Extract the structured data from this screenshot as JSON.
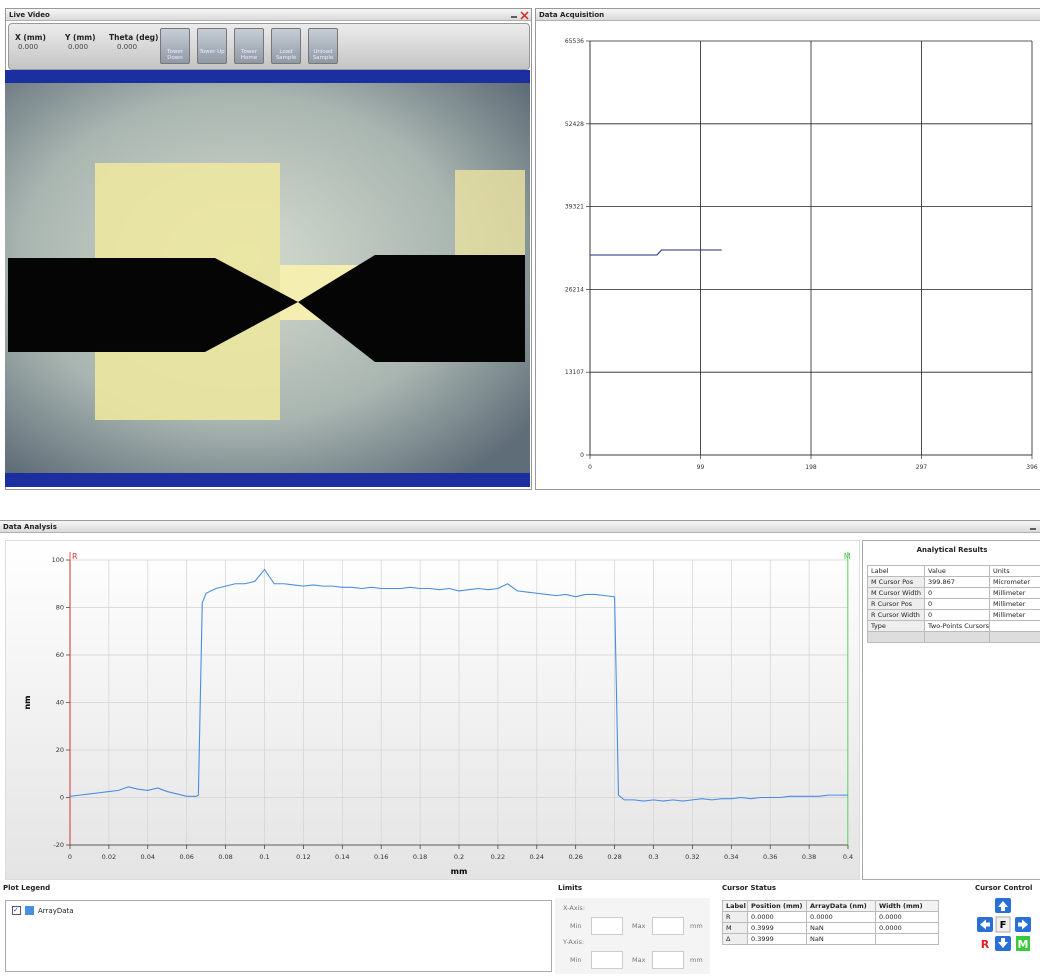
{
  "live_video": {
    "title": "Live Video",
    "readouts": [
      {
        "label": "X (mm)",
        "value": "0.000"
      },
      {
        "label": "Y (mm)",
        "value": "0.000"
      },
      {
        "label": "Theta (deg)",
        "value": "0.000"
      }
    ],
    "buttons": [
      "Tower Down",
      "Tower Up",
      "Tower Home",
      "Load Sample",
      "Unload Sample"
    ]
  },
  "chart_data": [
    {
      "type": "line",
      "title": "Data Acquisition",
      "x": [
        0,
        60,
        64,
        118
      ],
      "series": [
        {
          "color": "#1f2a8a",
          "values": [
            31660,
            31660,
            32450,
            32450
          ]
        }
      ],
      "xlim": [
        0,
        396
      ],
      "ylim": [
        0,
        65536
      ],
      "xticks": [
        0,
        99,
        198,
        297,
        396
      ],
      "yticks": [
        0,
        13107,
        26214,
        39321,
        52428,
        65536
      ],
      "grid": true
    },
    {
      "type": "line",
      "title": "Data Analysis",
      "xlabel": "mm",
      "ylabel": "nm",
      "x": [
        0,
        0.005,
        0.01,
        0.015,
        0.02,
        0.025,
        0.03,
        0.035,
        0.04,
        0.045,
        0.05,
        0.055,
        0.06,
        0.065,
        0.066,
        0.068,
        0.07,
        0.075,
        0.08,
        0.085,
        0.09,
        0.095,
        0.1,
        0.105,
        0.11,
        0.115,
        0.12,
        0.125,
        0.13,
        0.135,
        0.14,
        0.145,
        0.15,
        0.155,
        0.16,
        0.165,
        0.17,
        0.175,
        0.18,
        0.185,
        0.19,
        0.195,
        0.2,
        0.205,
        0.21,
        0.215,
        0.22,
        0.225,
        0.23,
        0.235,
        0.24,
        0.245,
        0.25,
        0.255,
        0.26,
        0.265,
        0.27,
        0.275,
        0.28,
        0.282,
        0.285,
        0.29,
        0.295,
        0.3,
        0.305,
        0.31,
        0.315,
        0.32,
        0.325,
        0.33,
        0.335,
        0.34,
        0.345,
        0.35,
        0.355,
        0.36,
        0.365,
        0.37,
        0.375,
        0.38,
        0.385,
        0.39,
        0.395,
        0.4
      ],
      "series": [
        {
          "name": "ArrayData",
          "color": "#4a8ee0",
          "values": [
            0.5,
            1,
            1.5,
            2,
            2.5,
            3,
            4.5,
            3.5,
            3,
            4,
            2.5,
            1.5,
            0.5,
            0.5,
            1,
            82,
            86,
            88,
            89,
            90,
            90,
            91,
            96,
            90,
            90,
            89.5,
            89,
            89.5,
            89,
            89,
            88.5,
            88.5,
            88,
            88.5,
            88,
            88,
            88,
            88.5,
            88,
            88,
            87.5,
            88,
            87,
            87.5,
            88,
            87.5,
            88,
            90,
            87,
            86.5,
            86,
            85.5,
            85,
            85.5,
            84.5,
            85.5,
            85.5,
            85,
            84.5,
            1,
            -1,
            -1,
            -1.5,
            -1,
            -1.5,
            -1,
            -1.5,
            -1,
            -0.5,
            -1,
            -0.5,
            -0.5,
            0,
            -0.5,
            0,
            0,
            0,
            0.5,
            0.5,
            0.5,
            0.5,
            1,
            1,
            1
          ]
        }
      ],
      "cursors": [
        {
          "label": "R",
          "color": "#e03030",
          "x": 0
        },
        {
          "label": "M",
          "color": "#44cc44",
          "x": 0.3999
        }
      ],
      "xlim": [
        0,
        0.4
      ],
      "ylim": [
        -20,
        100
      ],
      "xticks": [
        0,
        0.02,
        0.04,
        0.06,
        0.08,
        0.1,
        0.12,
        0.14,
        0.16,
        0.18,
        0.2,
        0.22,
        0.24,
        0.26,
        0.28,
        0.3,
        0.32,
        0.34,
        0.36,
        0.38,
        0.4
      ],
      "yticks": [
        -20,
        0,
        20,
        40,
        60,
        80,
        100
      ],
      "grid": true
    }
  ],
  "analytical_results": {
    "title": "Analytical Results",
    "header": [
      "Label",
      "Value",
      "Units"
    ],
    "rows": [
      [
        "M Cursor Pos",
        "399.867",
        "Micrometer"
      ],
      [
        "M Cursor Width",
        "0",
        "Millimeter"
      ],
      [
        "R Cursor Pos",
        "0",
        "Millimeter"
      ],
      [
        "R Cursor Width",
        "0",
        "Millimeter"
      ],
      [
        "Type",
        "Two-Points Cursors"
      ]
    ]
  },
  "plot_legend": {
    "title": "Plot Legend"
  },
  "limits": {
    "title": "Limits",
    "x_axis": "X-Axis:",
    "y_axis": "Y-Axis:",
    "min": "Min",
    "max": "Max",
    "unit": "mm"
  },
  "cursor_status": {
    "title": "Cursor Status",
    "header": [
      "Label",
      "Position (mm)",
      "ArrayData (nm)",
      "Width (mm)"
    ],
    "rows": [
      [
        "R",
        "0.0000",
        "0.0000",
        "0.0000"
      ],
      [
        "M",
        "0.3999",
        "NaN",
        "0.0000"
      ],
      [
        "Δ",
        "0.3999",
        "NaN"
      ]
    ]
  },
  "cursor_control": {
    "title": "Cursor Control",
    "buttons": [
      "F",
      "R",
      "M"
    ]
  }
}
